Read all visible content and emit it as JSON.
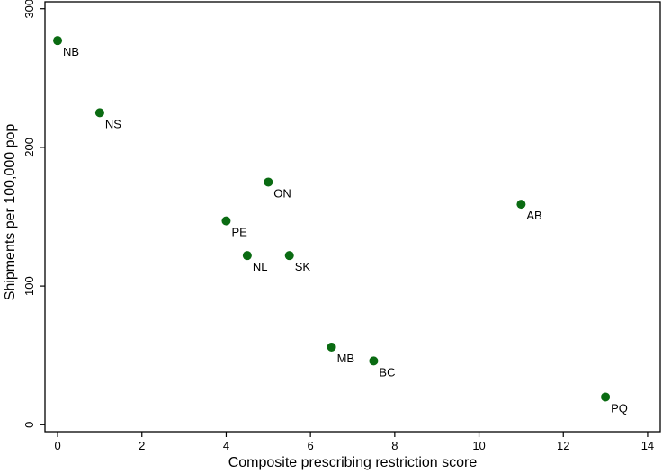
{
  "chart_data": {
    "type": "scatter",
    "xlabel": "Composite prescribing restriction score",
    "ylabel": "Shipments per 100,000 pop",
    "xlim": [
      -0.3,
      14.3
    ],
    "ylim": [
      -5,
      305
    ],
    "xticks": [
      0,
      2,
      4,
      6,
      8,
      10,
      12,
      14
    ],
    "yticks": [
      0,
      100,
      200,
      300
    ],
    "grid": false,
    "marker_color": "#0a6b12",
    "points": [
      {
        "label": "NB",
        "x": 0,
        "y": 277
      },
      {
        "label": "NS",
        "x": 1,
        "y": 225
      },
      {
        "label": "ON",
        "x": 5,
        "y": 175
      },
      {
        "label": "PE",
        "x": 4,
        "y": 147
      },
      {
        "label": "NL",
        "x": 4.5,
        "y": 122
      },
      {
        "label": "SK",
        "x": 5.5,
        "y": 122
      },
      {
        "label": "AB",
        "x": 11,
        "y": 159
      },
      {
        "label": "MB",
        "x": 6.5,
        "y": 56
      },
      {
        "label": "BC",
        "x": 7.5,
        "y": 46
      },
      {
        "label": "PQ",
        "x": 13,
        "y": 20
      }
    ]
  }
}
